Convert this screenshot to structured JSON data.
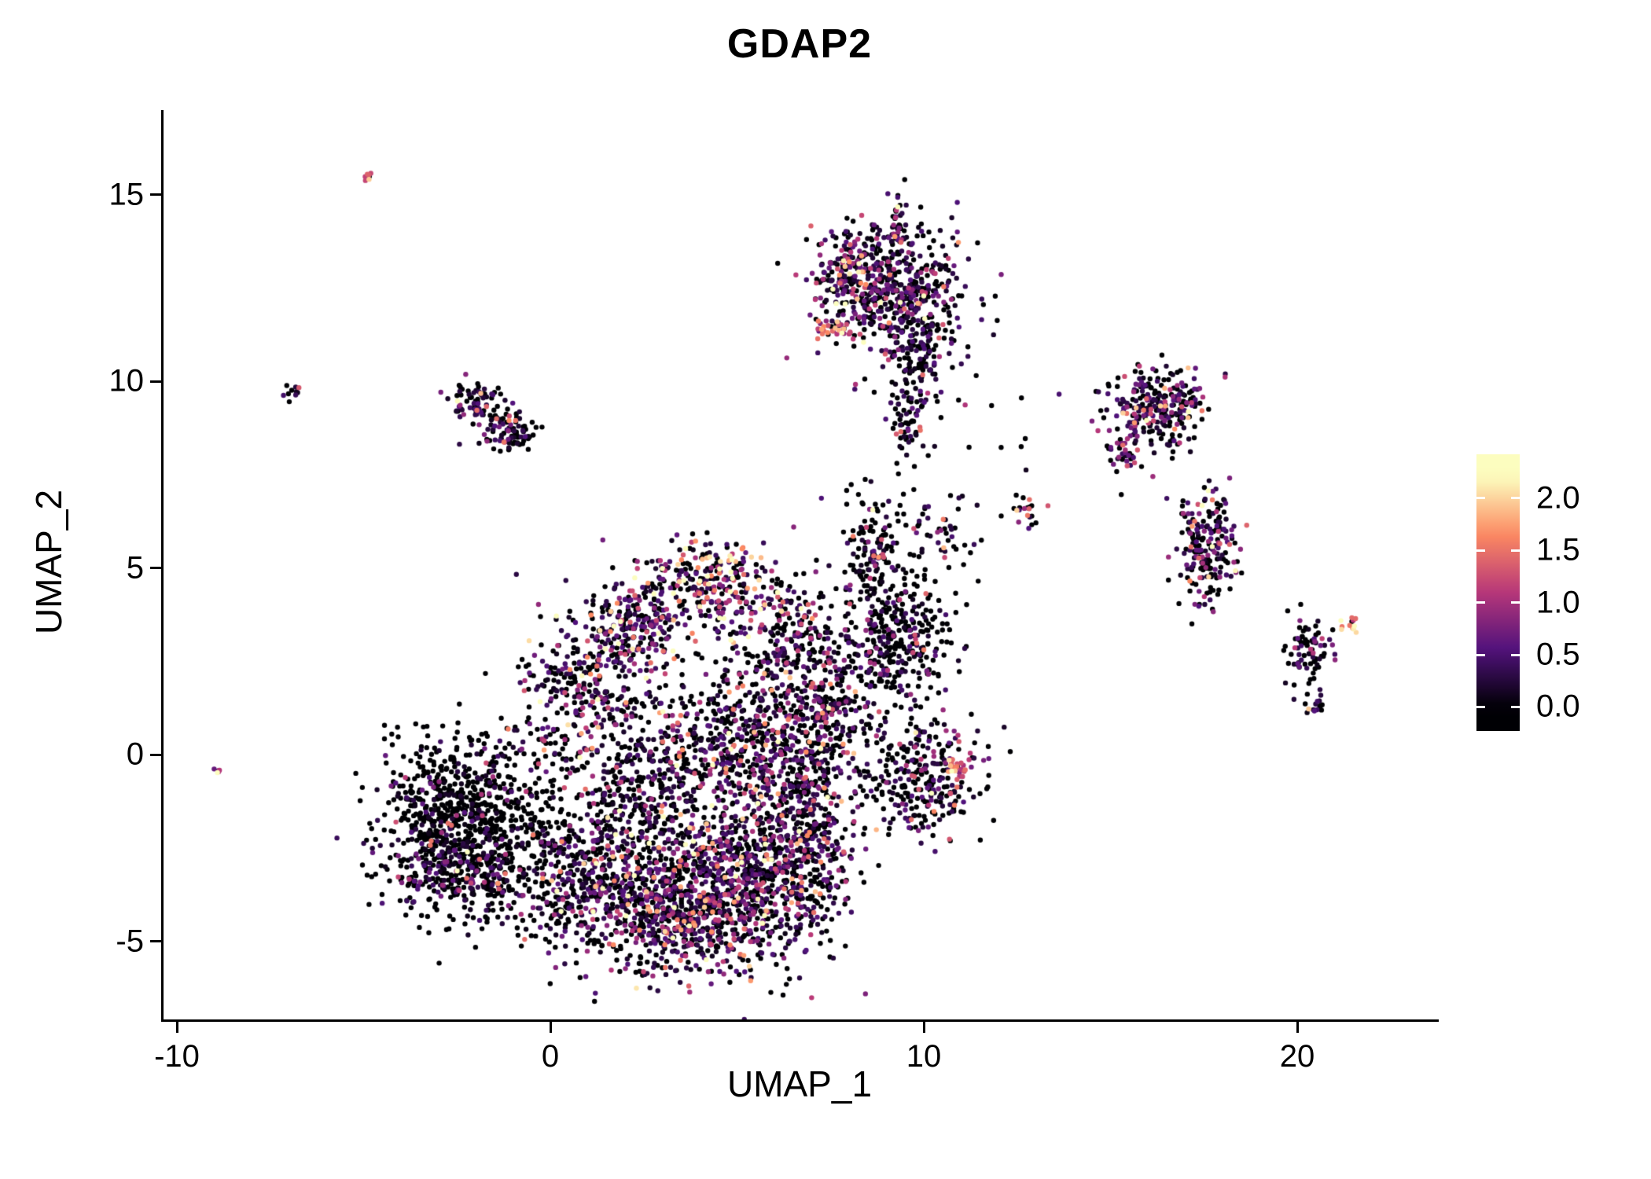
{
  "chart_data": {
    "type": "scatter",
    "title": "GDAP2",
    "xlabel": "UMAP_1",
    "ylabel": "UMAP_2",
    "xlim": [
      -10.4,
      23.8
    ],
    "ylim": [
      -7.2,
      17.2
    ],
    "x_ticks": [
      -10,
      0,
      10,
      20
    ],
    "y_ticks": [
      -5,
      0,
      5,
      10,
      15
    ],
    "grid": false,
    "legend_position": "right",
    "point_radius": 3.2,
    "seed": 42,
    "colorbar": {
      "labels": [
        {
          "text": "2.0",
          "value": 2.0
        },
        {
          "text": "1.5",
          "value": 1.5
        },
        {
          "text": "1.0",
          "value": 1.0
        },
        {
          "text": "0.5",
          "value": 0.5
        },
        {
          "text": "0.0",
          "value": 0.0
        }
      ],
      "vmin": 0,
      "vmax": 2.2,
      "bar_value_top": 2.42,
      "bar_value_bottom": -0.23
    },
    "colormap": {
      "name": "magma",
      "stops": [
        {
          "t": 0.0,
          "color": "#000004"
        },
        {
          "t": 0.25,
          "color": "#51127c"
        },
        {
          "t": 0.5,
          "color": "#b73779"
        },
        {
          "t": 0.75,
          "color": "#fc8961"
        },
        {
          "t": 1.0,
          "color": "#fcfdbf"
        }
      ]
    },
    "clusters": [
      {
        "cx": -2.3,
        "cy": -1.9,
        "sx": 1.15,
        "sy": 1.2,
        "n": 950,
        "p0": 0.82,
        "scale": 0.3
      },
      {
        "cx": -2.2,
        "cy": -3.3,
        "sx": 0.9,
        "sy": 0.35,
        "n": 120,
        "p0": 0.45,
        "scale": 0.6
      },
      {
        "cx": 1.5,
        "cy": -3.5,
        "sx": 1.3,
        "sy": 1.0,
        "n": 600,
        "p0": 0.5,
        "scale": 0.5
      },
      {
        "cx": 3.8,
        "cy": -4.2,
        "sx": 1.2,
        "sy": 0.9,
        "n": 650,
        "p0": 0.38,
        "scale": 0.65
      },
      {
        "cx": 5.8,
        "cy": -3.2,
        "sx": 1.1,
        "sy": 1.1,
        "n": 600,
        "p0": 0.45,
        "scale": 0.55
      },
      {
        "cx": 2.8,
        "cy": -0.8,
        "sx": 1.4,
        "sy": 1.2,
        "n": 500,
        "p0": 0.55,
        "scale": 0.5
      },
      {
        "cx": 5.5,
        "cy": 0.3,
        "sx": 1.2,
        "sy": 1.3,
        "n": 550,
        "p0": 0.5,
        "scale": 0.55
      },
      {
        "cx": 0.8,
        "cy": 1.8,
        "sx": 0.8,
        "sy": 1.0,
        "n": 280,
        "p0": 0.45,
        "scale": 0.6
      },
      {
        "cx": 2.4,
        "cy": 3.4,
        "sx": 0.6,
        "sy": 0.7,
        "n": 220,
        "p0": 0.3,
        "scale": 0.75
      },
      {
        "cx": 4.3,
        "cy": 4.6,
        "sx": 0.9,
        "sy": 0.55,
        "n": 280,
        "p0": 0.3,
        "scale": 0.8
      },
      {
        "cx": 6.3,
        "cy": 3.2,
        "sx": 0.6,
        "sy": 0.8,
        "n": 180,
        "p0": 0.45,
        "scale": 0.6
      },
      {
        "cx": 7.4,
        "cy": 1.2,
        "sx": 0.6,
        "sy": 0.9,
        "n": 200,
        "p0": 0.5,
        "scale": 0.5
      },
      {
        "cx": 7.0,
        "cy": -1.5,
        "sx": 0.6,
        "sy": 1.2,
        "n": 250,
        "p0": 0.45,
        "scale": 0.55
      },
      {
        "cx": 9.0,
        "cy": 3.1,
        "sx": 0.85,
        "sy": 0.95,
        "n": 380,
        "p0": 0.68,
        "scale": 0.4
      },
      {
        "cx": 8.6,
        "cy": 5.6,
        "sx": 0.35,
        "sy": 0.6,
        "n": 90,
        "p0": 0.55,
        "scale": 0.5
      },
      {
        "cx": 10.6,
        "cy": 5.9,
        "sx": 0.5,
        "sy": 0.5,
        "n": 35,
        "p0": 0.5,
        "scale": 0.5
      },
      {
        "cx": 9.9,
        "cy": -0.6,
        "sx": 0.75,
        "sy": 0.8,
        "n": 280,
        "p0": 0.55,
        "scale": 0.5
      },
      {
        "cx": 10.9,
        "cy": -0.4,
        "sx": 0.15,
        "sy": 0.3,
        "n": 30,
        "p0": 0.15,
        "scale": 0.4,
        "base": 1.0
      },
      {
        "cx": 9.3,
        "cy": 6.3,
        "sx": 0.8,
        "sy": 0.6,
        "n": 40,
        "p0": 0.7,
        "scale": 0.4
      },
      {
        "cx": 11.5,
        "cy": 7.5,
        "sx": 1.5,
        "sy": 1.2,
        "n": 15,
        "p0": 0.8,
        "scale": 0.4
      },
      {
        "cx": 12.7,
        "cy": 6.5,
        "sx": 0.25,
        "sy": 0.2,
        "n": 20,
        "p0": 0.35,
        "scale": 0.8
      },
      {
        "cx": 9.2,
        "cy": 12.4,
        "sx": 1.0,
        "sy": 0.9,
        "n": 520,
        "p0": 0.45,
        "scale": 0.55
      },
      {
        "cx": 8.1,
        "cy": 12.9,
        "sx": 0.5,
        "sy": 0.6,
        "n": 150,
        "p0": 0.35,
        "scale": 0.6
      },
      {
        "cx": 9.9,
        "cy": 10.3,
        "sx": 0.45,
        "sy": 0.8,
        "n": 120,
        "p0": 0.55,
        "scale": 0.45
      },
      {
        "cx": 9.6,
        "cy": 8.9,
        "sx": 0.25,
        "sy": 0.45,
        "n": 50,
        "p0": 0.6,
        "scale": 0.4
      },
      {
        "cx": 9.35,
        "cy": 14.2,
        "sx": 0.18,
        "sy": 0.45,
        "n": 40,
        "p0": 0.4,
        "scale": 0.5
      },
      {
        "cx": 7.7,
        "cy": 11.4,
        "sx": 0.3,
        "sy": 0.15,
        "n": 25,
        "p0": 0.1,
        "scale": 0.5,
        "base": 0.9
      },
      {
        "cx": 16.2,
        "cy": 9.3,
        "sx": 0.75,
        "sy": 0.55,
        "n": 260,
        "p0": 0.4,
        "scale": 0.6
      },
      {
        "cx": 15.3,
        "cy": 8.1,
        "sx": 0.25,
        "sy": 0.25,
        "n": 35,
        "p0": 0.35,
        "scale": 0.7
      },
      {
        "cx": 17.6,
        "cy": 5.6,
        "sx": 0.4,
        "sy": 0.75,
        "n": 200,
        "p0": 0.45,
        "scale": 0.6
      },
      {
        "cx": 20.3,
        "cy": 2.7,
        "sx": 0.3,
        "sy": 0.45,
        "n": 80,
        "p0": 0.6,
        "scale": 0.45
      },
      {
        "cx": 21.4,
        "cy": 3.5,
        "sx": 0.18,
        "sy": 0.12,
        "n": 12,
        "p0": 0.08,
        "scale": 0.4,
        "base": 1.1
      },
      {
        "cx": 20.5,
        "cy": 1.4,
        "sx": 0.12,
        "sy": 0.2,
        "n": 15,
        "p0": 0.55,
        "scale": 0.4
      },
      {
        "cx": -2.0,
        "cy": 9.4,
        "sx": 0.35,
        "sy": 0.3,
        "n": 80,
        "p0": 0.55,
        "scale": 0.5
      },
      {
        "cx": -1.1,
        "cy": 8.6,
        "sx": 0.35,
        "sy": 0.25,
        "n": 90,
        "p0": 0.5,
        "scale": 0.55
      },
      {
        "cx": -6.9,
        "cy": 9.7,
        "sx": 0.12,
        "sy": 0.12,
        "n": 10,
        "p0": 0.3,
        "scale": 0.7
      },
      {
        "cx": -4.85,
        "cy": 15.45,
        "sx": 0.1,
        "sy": 0.07,
        "n": 7,
        "p0": 0.05,
        "scale": 0.4,
        "base": 1.1
      },
      {
        "cx": -8.9,
        "cy": -0.4,
        "sx": 0.06,
        "sy": 0.06,
        "n": 5,
        "p0": 0.3,
        "scale": 0.6
      }
    ]
  }
}
